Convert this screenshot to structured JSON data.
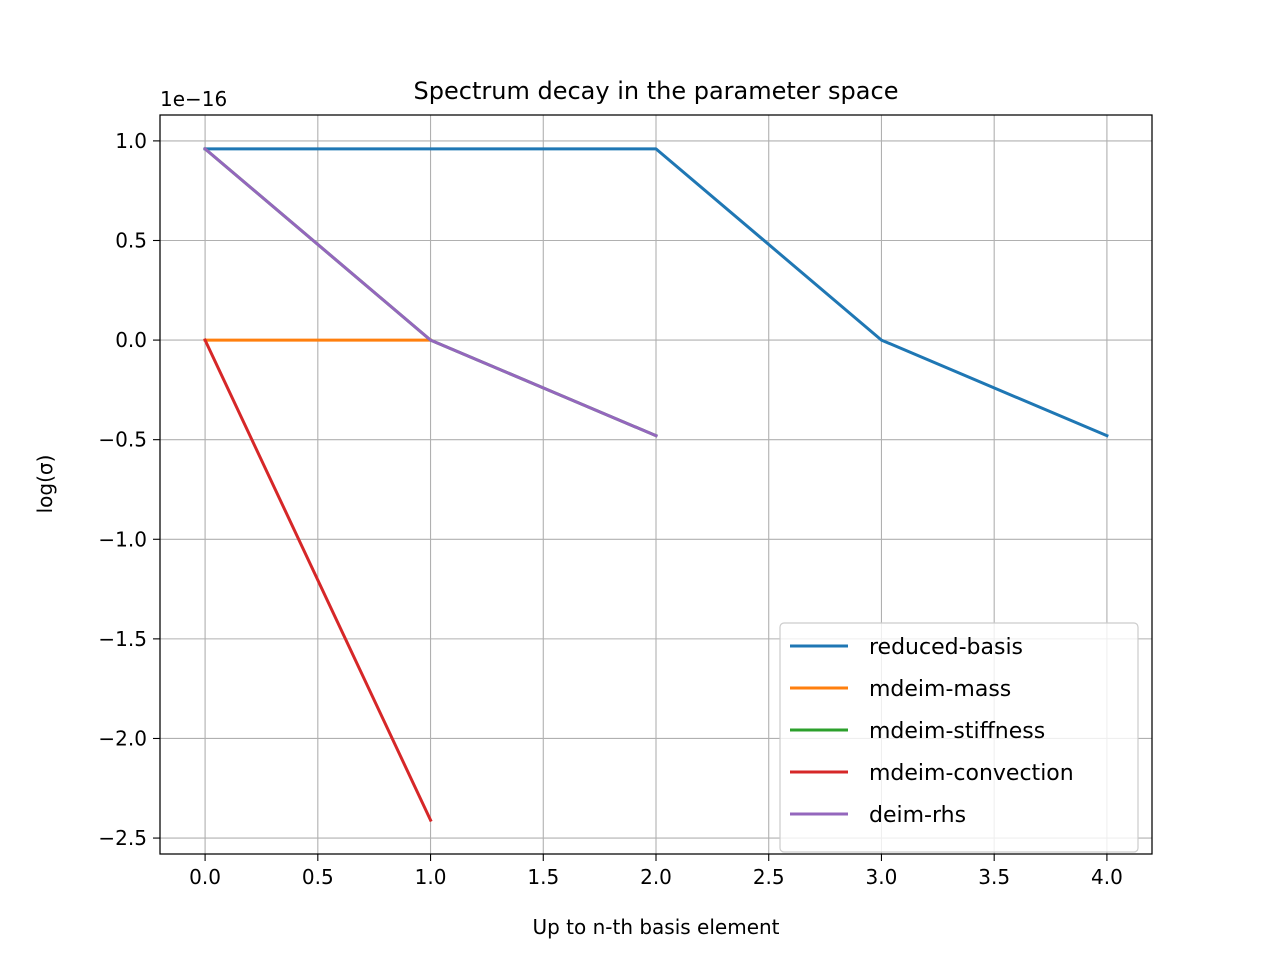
{
  "chart_data": {
    "type": "line",
    "title": "Spectrum decay in the parameter space",
    "xlabel": "Up to n-th basis element",
    "ylabel": "log(σ)",
    "y_offset_label": "1e−16",
    "y_scale_factor": 1e-16,
    "xlim": [
      -0.2,
      4.2
    ],
    "ylim": [
      -2.58,
      1.13
    ],
    "grid": true,
    "legend_position": "lower right",
    "x_ticks": [
      0.0,
      0.5,
      1.0,
      1.5,
      2.0,
      2.5,
      3.0,
      3.5,
      4.0
    ],
    "x_tick_labels": [
      "0.0",
      "0.5",
      "1.0",
      "1.5",
      "2.0",
      "2.5",
      "3.0",
      "3.5",
      "4.0"
    ],
    "y_ticks": [
      1.0,
      0.5,
      0.0,
      -0.5,
      -1.0,
      -1.5,
      -2.0,
      -2.5
    ],
    "y_tick_labels": [
      "1.0",
      "0.5",
      "0.0",
      "−0.5",
      "−1.0",
      "−1.5",
      "−2.0",
      "−2.5"
    ],
    "series": [
      {
        "name": "reduced-basis",
        "color": "#1f77b4",
        "x": [
          0,
          1,
          2,
          3,
          4
        ],
        "y": [
          0.96,
          0.96,
          0.96,
          0.0,
          -0.48
        ]
      },
      {
        "name": "mdeim-mass",
        "color": "#ff7f0e",
        "x": [
          0,
          1
        ],
        "y": [
          0.0,
          0.0
        ]
      },
      {
        "name": "mdeim-stiffness",
        "color": "#2ca02c",
        "x": [
          0,
          1,
          2
        ],
        "y": [
          0.96,
          0.0,
          -0.48
        ]
      },
      {
        "name": "mdeim-convection",
        "color": "#d62728",
        "x": [
          0,
          1
        ],
        "y": [
          0.0,
          -2.41
        ]
      },
      {
        "name": "deim-rhs",
        "color": "#9467bd",
        "x": [
          0,
          1,
          2
        ],
        "y": [
          0.96,
          0.0,
          -0.48
        ]
      }
    ]
  }
}
